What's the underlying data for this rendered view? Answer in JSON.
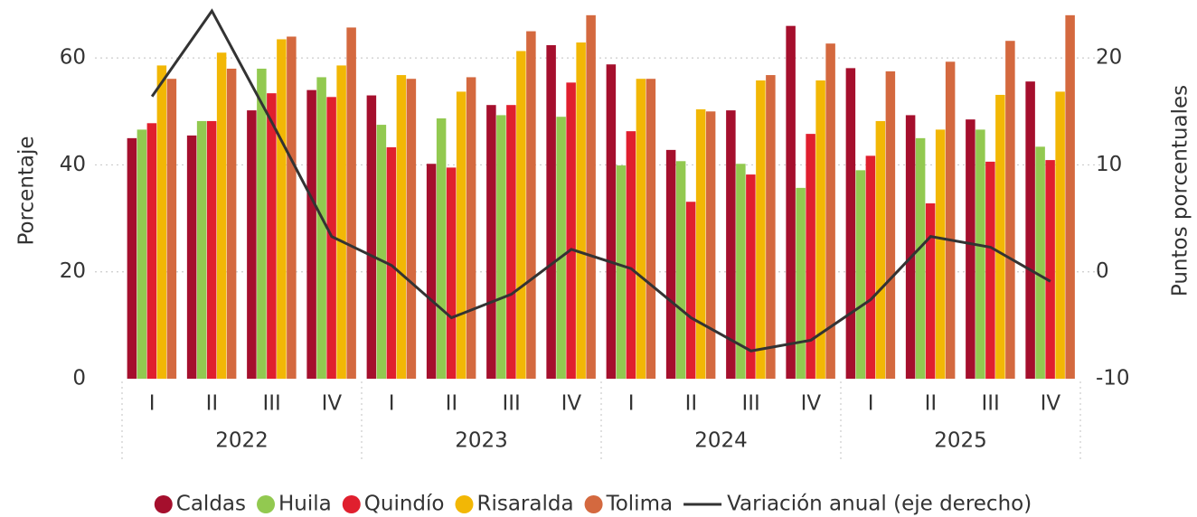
{
  "chart_data": {
    "type": "bar",
    "y_label": "Porcentaje",
    "y2_label": "Puntos porcentuales",
    "categories": [
      "I",
      "II",
      "III",
      "IV",
      "I",
      "II",
      "III",
      "IV",
      "I",
      "II",
      "III",
      "IV",
      "I",
      "II",
      "III",
      "IV"
    ],
    "groups": [
      "2022",
      "2023",
      "2024",
      "2025"
    ],
    "series": [
      {
        "name": "Caldas",
        "color": "#a50f2d",
        "values": [
          45,
          45.5,
          50.2,
          54,
          53,
          40.2,
          51.2,
          62.4,
          58.8,
          42.8,
          50.2,
          66,
          58.1,
          49.3,
          48.5,
          55.6
        ]
      },
      {
        "name": "Huila",
        "color": "#92c950",
        "values": [
          46.6,
          48.2,
          58,
          56.4,
          47.5,
          48.7,
          49.3,
          49,
          39.9,
          40.7,
          40.2,
          35.7,
          39,
          45,
          46.6,
          43.4
        ]
      },
      {
        "name": "Quindío",
        "color": "#e01f2e",
        "values": [
          47.8,
          48.2,
          53.4,
          52.7,
          43.3,
          39.5,
          51.2,
          55.4,
          46.3,
          33.1,
          38.2,
          45.8,
          41.7,
          32.8,
          40.6,
          40.9
        ]
      },
      {
        "name": "Risaralda",
        "color": "#f2b705",
        "values": [
          58.6,
          61,
          63.5,
          58.6,
          56.8,
          53.7,
          61.3,
          62.9,
          56.1,
          50.4,
          55.8,
          55.8,
          48.2,
          46.6,
          53.1,
          53.7
        ]
      },
      {
        "name": "Tolima",
        "color": "#d4693f",
        "values": [
          56.1,
          58,
          64,
          65.7,
          56.1,
          56.4,
          65,
          68,
          56.1,
          50,
          56.8,
          62.7,
          57.5,
          59.3,
          63.2,
          68
        ]
      },
      {
        "name": "Variación anual (eje derecho)",
        "color": "#333333",
        "type": "line",
        "axis": "y2",
        "values": [
          16.4,
          24.4,
          14,
          3.3,
          0.6,
          -4.3,
          -2.1,
          2.1,
          0.3,
          -4.3,
          -7.4,
          -6.4,
          -2.6,
          3.3,
          2.3,
          -0.9
        ]
      }
    ],
    "ylim": [
      0,
      70
    ],
    "yticks": [
      0,
      20,
      40,
      60
    ],
    "y2lim": [
      -10,
      25
    ],
    "y2ticks": [
      -10,
      0,
      10,
      20
    ],
    "grid": true,
    "legend": "bottom"
  }
}
